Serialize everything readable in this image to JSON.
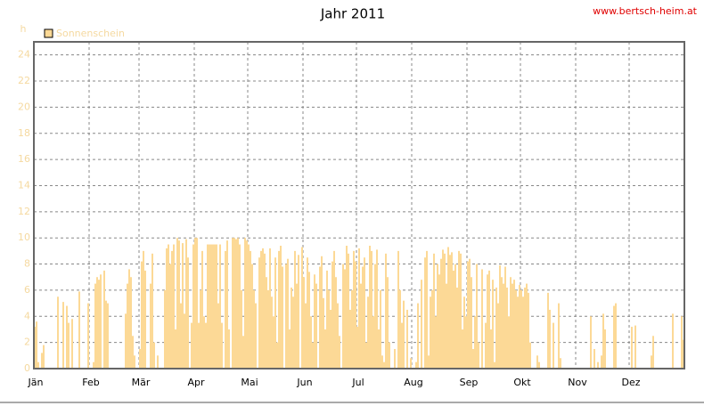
{
  "chart_data": {
    "type": "bar",
    "title": "Jahr 2011",
    "link": "www.bertsch-heim.at",
    "y_unit": "h",
    "color": "#fcd996",
    "grid": true,
    "series": [
      {
        "name": "Sonnenschein",
        "color": "#fcd996",
        "values": [
          3.2,
          3.6,
          0.5,
          0,
          1.2,
          1.8,
          0,
          0,
          0,
          0,
          0,
          0,
          0,
          5.5,
          0,
          0,
          5.1,
          0,
          4.8,
          3.5,
          0,
          3.8,
          0,
          0,
          0,
          5.9,
          0,
          0,
          0,
          0,
          5.0,
          0,
          0,
          0.5,
          6.5,
          7.0,
          6.8,
          7.2,
          0,
          7.5,
          5.2,
          5.0,
          0,
          0,
          0,
          0,
          0,
          0,
          0,
          0,
          0,
          4.2,
          6.5,
          7.6,
          7.0,
          2.5,
          1.0,
          0,
          0,
          1.5,
          8.2,
          9.0,
          7.5,
          0,
          0,
          6.5,
          8.8,
          2.0,
          0,
          1.0,
          0,
          0,
          0,
          6.0,
          9.2,
          9.5,
          8.0,
          9.0,
          9.5,
          3.0,
          10.0,
          9.8,
          5.0,
          9.6,
          4.2,
          9.9,
          8.5,
          0,
          3.5,
          9.5,
          10.0,
          10.0,
          3.5,
          6.0,
          9.0,
          4.0,
          3.5,
          9.5,
          9.5,
          9.5,
          9.5,
          9.5,
          9.5,
          5.0,
          9.5,
          3.5,
          0,
          9.0,
          9.8,
          3.0,
          0,
          10.0,
          10.0,
          9.9,
          10.0,
          9.5,
          6.0,
          2.5,
          10.0,
          9.8,
          9.5,
          9.0,
          8.0,
          6.0,
          5.0,
          0,
          8.5,
          9.0,
          9.2,
          8.8,
          7.0,
          6.0,
          9.2,
          5.5,
          4.0,
          8.5,
          2.0,
          9.0,
          9.4,
          7.8,
          0,
          8.0,
          8.4,
          3.0,
          6.2,
          5.5,
          9.0,
          6.5,
          8.7,
          0,
          9.3,
          7.0,
          5.0,
          8.5,
          7.4,
          4.0,
          2.0,
          7.2,
          6.5,
          0,
          7.8,
          8.6,
          5.4,
          3.0,
          7.5,
          6.0,
          4.5,
          8.2,
          9.0,
          7.0,
          5.0,
          2.5,
          0,
          8.0,
          7.6,
          9.4,
          8.8,
          4.5,
          6.0,
          9.0,
          8.2,
          3.2,
          9.2,
          6.5,
          7.8,
          8.5,
          2.0,
          5.5,
          9.4,
          9.0,
          4.0,
          8.0,
          9.1,
          3.0,
          6.0,
          1.0,
          0.5,
          8.8,
          7.0,
          2.0,
          0,
          0,
          1.5,
          0,
          9.0,
          6.0,
          3.5,
          5.2,
          0,
          4.5,
          0,
          0.8,
          0,
          0,
          0.5,
          5.0,
          0,
          6.8,
          0,
          8.5,
          9.0,
          1.0,
          5.5,
          6.0,
          8.8,
          4.0,
          8.0,
          7.2,
          8.4,
          9.1,
          8.8,
          6.5,
          9.3,
          8.7,
          8.9,
          7.5,
          8.0,
          6.2,
          9.0,
          8.8,
          3.0,
          5.5,
          4.0,
          8.2,
          8.4,
          7.0,
          1.5,
          4.0,
          8.0,
          2.0,
          0,
          7.6,
          0,
          3.5,
          7.2,
          7.5,
          3.0,
          6.8,
          0.5,
          6.2,
          5.0,
          7.9,
          7.0,
          6.5,
          7.8,
          6.2,
          4.0,
          7.0,
          6.5,
          6.8,
          6.0,
          5.5,
          6.4,
          6.0,
          5.5,
          6.2,
          6.5,
          5.8,
          2.0,
          0,
          0,
          0,
          1.0,
          0.5,
          0,
          0,
          0,
          0,
          5.8,
          4.5,
          0,
          3.5,
          0,
          0,
          5.0,
          0.8,
          0,
          0,
          0,
          0,
          0,
          0,
          0,
          0,
          0,
          0,
          0,
          0,
          0,
          0,
          0,
          0,
          4.0,
          0,
          1.5,
          0,
          0.5,
          0,
          1.0,
          4.2,
          3.0,
          0,
          0,
          0,
          0,
          4.8,
          5.0,
          0,
          0,
          0,
          0,
          0,
          0,
          0,
          0,
          3.2,
          0,
          3.3,
          0,
          0,
          0,
          0,
          0,
          0,
          0,
          0,
          1.0,
          2.5,
          0,
          0,
          0,
          0,
          0,
          0,
          0,
          0,
          0,
          0,
          4.2,
          0,
          0,
          0,
          0,
          4.0,
          2.2
        ]
      }
    ],
    "categories": [
      "Jän",
      null,
      null,
      null,
      null,
      null,
      null,
      null,
      null,
      null,
      null,
      null,
      null,
      null,
      null,
      null,
      null,
      null,
      null,
      null,
      null,
      null,
      null,
      null,
      null,
      null,
      null,
      null,
      null,
      null,
      null,
      "Feb",
      null,
      null,
      null,
      null,
      null,
      null,
      null,
      null,
      null,
      null,
      null,
      null,
      null,
      null,
      null,
      null,
      null,
      null,
      null,
      null,
      null,
      null,
      null,
      null,
      null,
      null,
      null,
      "Mär",
      null,
      null,
      null,
      null,
      null,
      null,
      null,
      null,
      null,
      null,
      null,
      null,
      null,
      null,
      null,
      null,
      null,
      null,
      null,
      null,
      null,
      null,
      null,
      null,
      null,
      null,
      null,
      null,
      null,
      null,
      "Apr",
      null,
      null,
      null,
      null,
      null,
      null,
      null,
      null,
      null,
      null,
      null,
      null,
      null,
      null,
      null,
      null,
      null,
      null,
      null,
      null,
      null,
      null,
      null,
      null,
      null,
      null,
      null,
      null,
      null,
      "Mai",
      null,
      null,
      null,
      null,
      null,
      null,
      null,
      null,
      null,
      null,
      null,
      null,
      null,
      null,
      null,
      null,
      null,
      null,
      null,
      null,
      null,
      null,
      null,
      null,
      null,
      null,
      null,
      null,
      null,
      null,
      "Jun",
      null,
      null,
      null,
      null,
      null,
      null,
      null,
      null,
      null,
      null,
      null,
      null,
      null,
      null,
      null,
      null,
      null,
      null,
      null,
      null,
      null,
      null,
      null,
      null,
      null,
      null,
      null,
      null,
      null,
      "Jul",
      null,
      null,
      null,
      null,
      null,
      null,
      null,
      null,
      null,
      null,
      null,
      null,
      null,
      null,
      null,
      null,
      null,
      null,
      null,
      null,
      null,
      null,
      null,
      null,
      null,
      null,
      null,
      null,
      null,
      null,
      "Aug",
      null,
      null,
      null,
      null,
      null,
      null,
      null,
      null,
      null,
      null,
      null,
      null,
      null,
      null,
      null,
      null,
      null,
      null,
      null,
      null,
      null,
      null,
      null,
      null,
      null,
      null,
      null,
      null,
      null,
      null,
      "Sep",
      null,
      null,
      null,
      null,
      null,
      null,
      null,
      null,
      null,
      null,
      null,
      null,
      null,
      null,
      null,
      null,
      null,
      null,
      null,
      null,
      null,
      null,
      null,
      null,
      null,
      null,
      null,
      null,
      null,
      "Okt",
      null,
      null,
      null,
      null,
      null,
      null,
      null,
      null,
      null,
      null,
      null,
      null,
      null,
      null,
      null,
      null,
      null,
      null,
      null,
      null,
      null,
      null,
      null,
      null,
      null,
      null,
      null,
      null,
      null,
      null,
      "Nov",
      null,
      null,
      null,
      null,
      null,
      null,
      null,
      null,
      null,
      null,
      null,
      null,
      null,
      null,
      null,
      null,
      null,
      null,
      null,
      null,
      null,
      null,
      null,
      null,
      null,
      null,
      null,
      null,
      null,
      "Dez",
      null,
      null,
      null,
      null,
      null,
      null,
      null,
      null,
      null,
      null,
      null,
      null,
      null,
      null,
      null,
      null,
      null,
      null,
      null,
      null,
      null,
      null,
      null,
      null,
      null,
      null,
      null,
      null,
      null,
      null
    ],
    "ylim": [
      0,
      25
    ],
    "yticks": [
      0,
      2,
      4,
      6,
      8,
      10,
      12,
      14,
      16,
      18,
      20,
      22,
      24
    ]
  }
}
